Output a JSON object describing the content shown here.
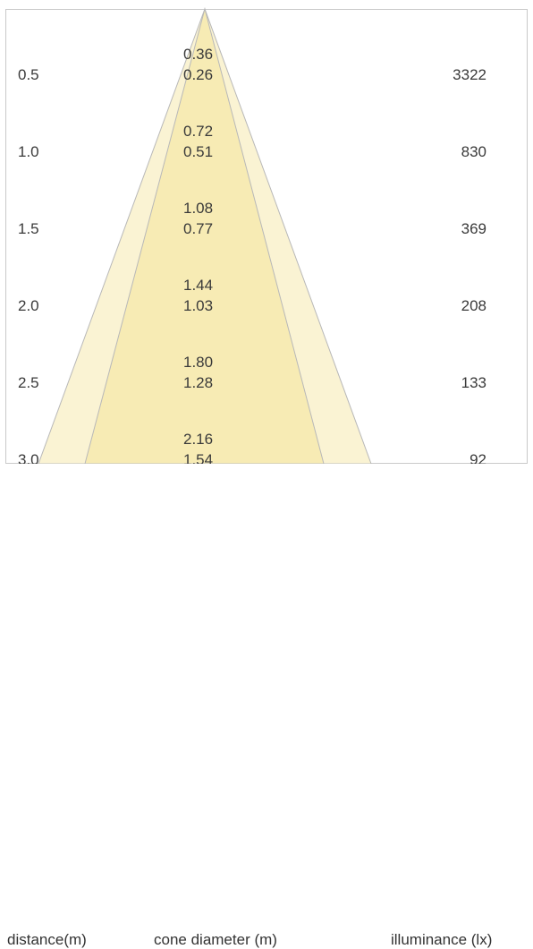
{
  "colors": {
    "outer_cone": "#faf3d3",
    "inner_cone": "#f7ebb4",
    "cone_edge": "#b8b8b8",
    "border": "#c9c9c9",
    "text": "#3a3a3a"
  },
  "rows": [
    {
      "distance": "0.5",
      "outer_diameter": "0.36",
      "inner_diameter": "0.26",
      "illuminance": "3322"
    },
    {
      "distance": "1.0",
      "outer_diameter": "0.72",
      "inner_diameter": "0.51",
      "illuminance": "830"
    },
    {
      "distance": "1.5",
      "outer_diameter": "1.08",
      "inner_diameter": "0.77",
      "illuminance": "369"
    },
    {
      "distance": "2.0",
      "outer_diameter": "1.44",
      "inner_diameter": "1.03",
      "illuminance": "208"
    },
    {
      "distance": "2.5",
      "outer_diameter": "1.80",
      "inner_diameter": "1.28",
      "illuminance": "133"
    },
    {
      "distance": "3.0",
      "outer_diameter": "2.16",
      "inner_diameter": "1.54",
      "illuminance": "92"
    }
  ],
  "footer": {
    "distance_label": "distance(m)",
    "diameter_label": "cone diameter (m)",
    "illuminance_label": "illuminance (lx)"
  }
}
